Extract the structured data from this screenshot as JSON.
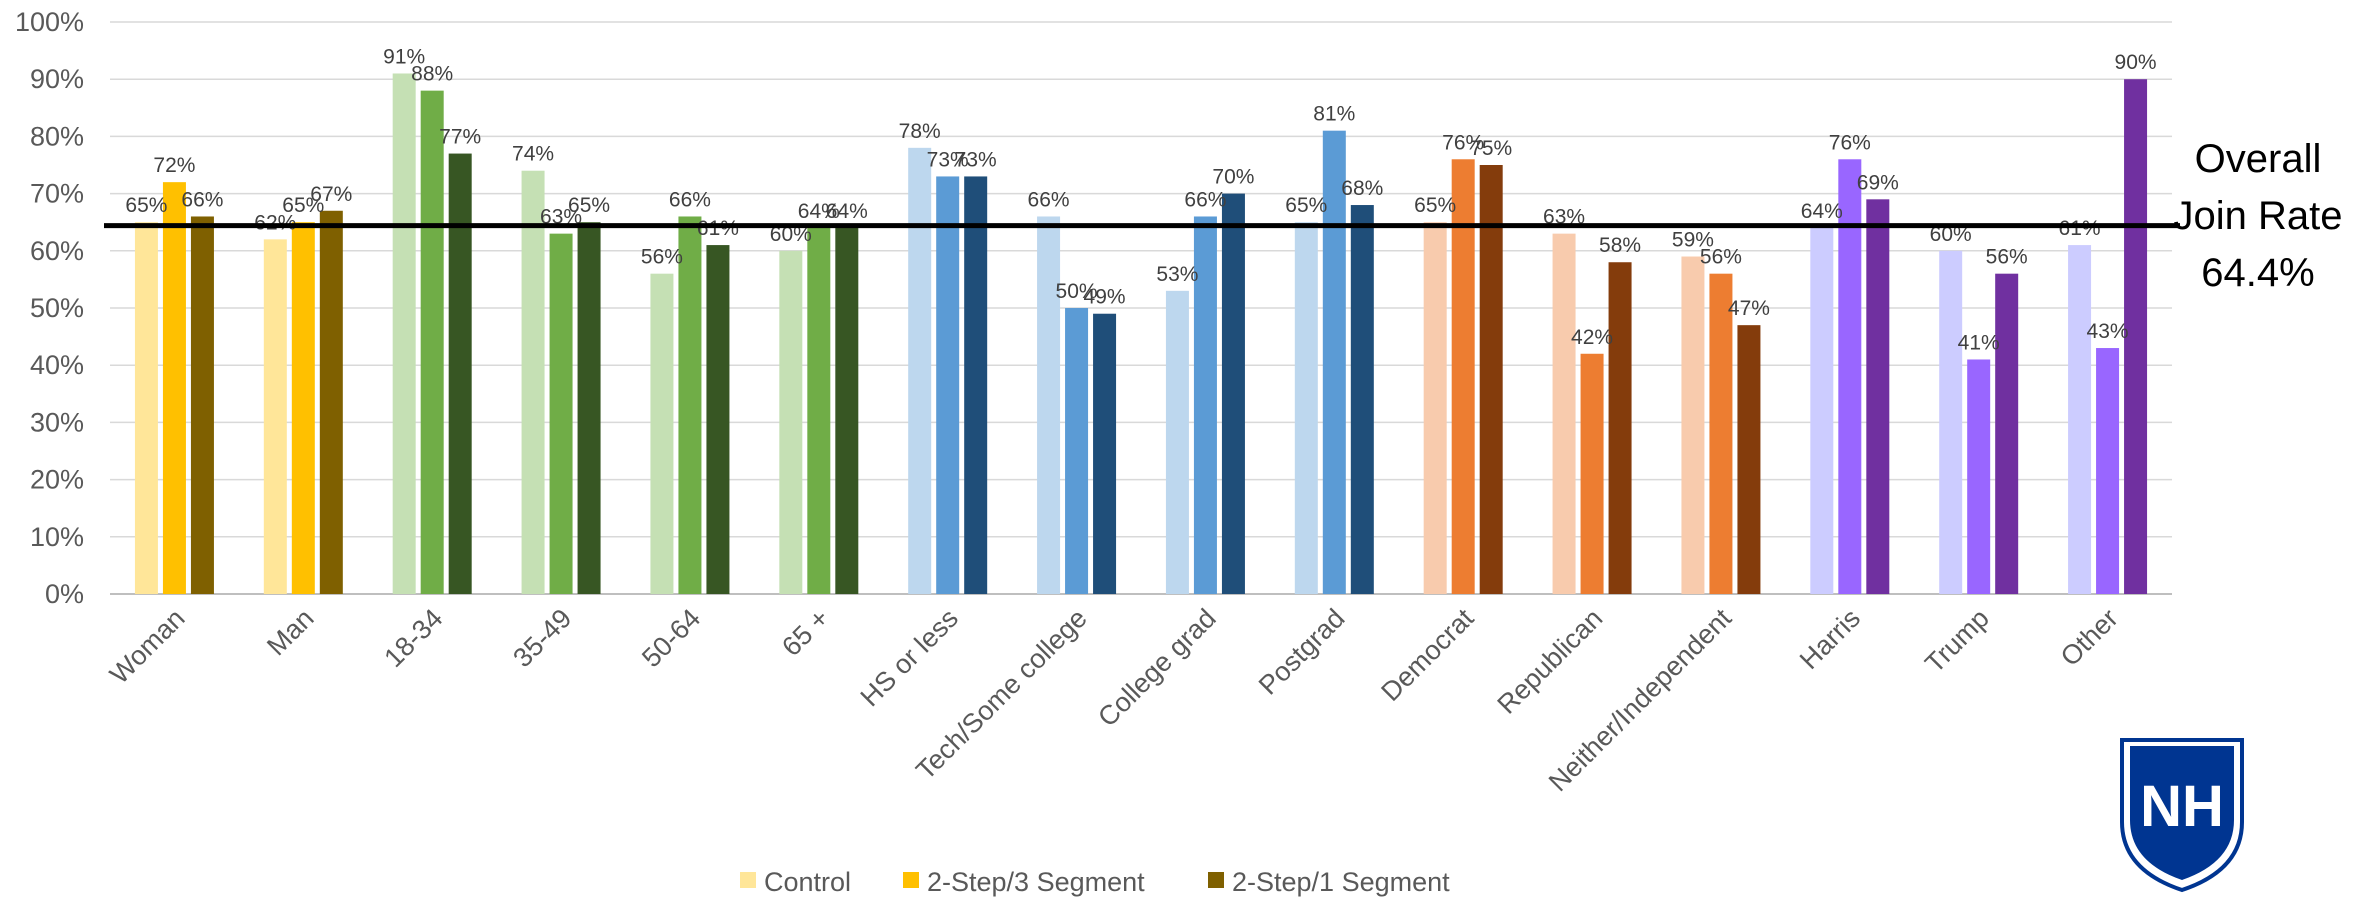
{
  "chart_data": {
    "type": "bar",
    "categories": [
      "Woman",
      "Man",
      "18-34",
      "35-49",
      "50-64",
      "65 +",
      "HS or less",
      "Tech/Some college",
      "College grad",
      "Postgrad",
      "Democrat",
      "Republican",
      "Neither/Independent",
      "Harris",
      "Trump",
      "Other"
    ],
    "series": [
      {
        "name": "Control",
        "values": [
          65,
          62,
          91,
          74,
          56,
          60,
          78,
          66,
          53,
          65,
          65,
          63,
          59,
          64,
          60,
          61
        ]
      },
      {
        "name": "2-Step/3 Segment",
        "values": [
          72,
          65,
          88,
          63,
          66,
          64,
          73,
          50,
          66,
          81,
          76,
          42,
          56,
          76,
          41,
          43
        ]
      },
      {
        "name": "2-Step/1 Segment",
        "values": [
          66,
          67,
          77,
          65,
          61,
          64,
          73,
          49,
          70,
          68,
          75,
          58,
          47,
          69,
          56,
          90
        ]
      }
    ],
    "value_suffix": "%",
    "ylim": [
      0,
      100
    ],
    "yticks": [
      "0%",
      "10%",
      "20%",
      "30%",
      "40%",
      "50%",
      "60%",
      "70%",
      "80%",
      "90%",
      "100%"
    ],
    "grid": true,
    "legend_position": "bottom",
    "reference_line": {
      "value": 64.4,
      "label_lines": [
        "Overall",
        "Join Rate",
        "64.4%"
      ]
    },
    "colors": {
      "Woman": [
        "#FFE699",
        "#FFC000",
        "#7F6000"
      ],
      "Man": [
        "#FFE699",
        "#FFC000",
        "#7F6000"
      ],
      "18-34": [
        "#C5E0B4",
        "#70AD47",
        "#375623"
      ],
      "35-49": [
        "#C5E0B4",
        "#70AD47",
        "#375623"
      ],
      "50-64": [
        "#C5E0B4",
        "#70AD47",
        "#375623"
      ],
      "65 +": [
        "#C5E0B4",
        "#70AD47",
        "#375623"
      ],
      "HS or less": [
        "#BDD7EE",
        "#5B9BD5",
        "#1F4E79"
      ],
      "Tech/Some college": [
        "#BDD7EE",
        "#5B9BD5",
        "#1F4E79"
      ],
      "College grad": [
        "#BDD7EE",
        "#5B9BD5",
        "#1F4E79"
      ],
      "Postgrad": [
        "#BDD7EE",
        "#5B9BD5",
        "#1F4E79"
      ],
      "Democrat": [
        "#F8CBAD",
        "#ED7D31",
        "#843C0C"
      ],
      "Republican": [
        "#F8CBAD",
        "#ED7D31",
        "#843C0C"
      ],
      "Neither/Independent": [
        "#F8CBAD",
        "#ED7D31",
        "#843C0C"
      ],
      "Harris": [
        "#CCCCFF",
        "#9966FF",
        "#7030A0"
      ],
      "Trump": [
        "#CCCCFF",
        "#9966FF",
        "#7030A0"
      ],
      "Other": [
        "#CCCCFF",
        "#9966FF",
        "#7030A0"
      ]
    },
    "legend_colors": [
      "#FFE699",
      "#FFC000",
      "#7F6000"
    ]
  },
  "logo": {
    "text": "NH",
    "shield_color": "#003591",
    "icon": "unh-shield-logo"
  }
}
